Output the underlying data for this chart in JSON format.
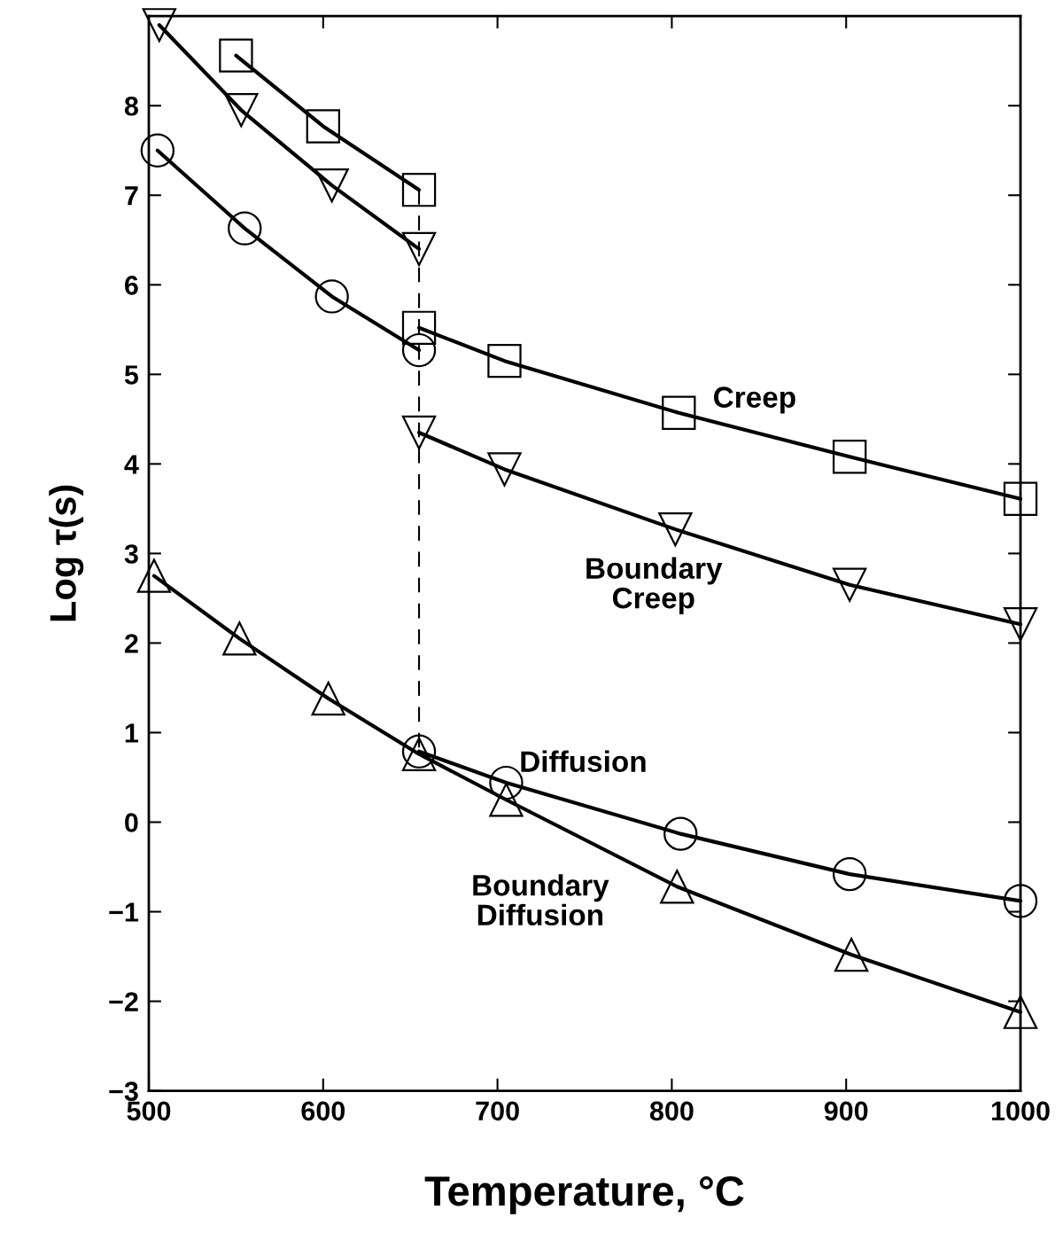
{
  "chart_data": {
    "type": "line",
    "xlabel": "Temperature, °C",
    "ylabel": "Log τ(s)",
    "xlim": [
      500,
      1000
    ],
    "ylim": [
      -3,
      9
    ],
    "xticks": [
      500,
      600,
      700,
      800,
      900,
      1000
    ],
    "yticks": [
      -3,
      -2,
      -1,
      0,
      1,
      2,
      3,
      4,
      5,
      6,
      7,
      8
    ],
    "grid": false,
    "legend": false,
    "series": [
      {
        "color": "#000000",
        "marker": "square",
        "x": [
          550,
          600,
          655
        ],
        "values": [
          8.56,
          7.77,
          7.06
        ]
      },
      {
        "color": "#000000",
        "marker": "square",
        "x": [
          655,
          704,
          804,
          902,
          1000
        ],
        "values": [
          5.52,
          5.15,
          4.57,
          4.08,
          3.61
        ]
      },
      {
        "color": "#000000",
        "marker": "triangle_down",
        "x": [
          506,
          553,
          605,
          655
        ],
        "values": [
          8.9,
          7.95,
          7.11,
          6.4
        ]
      },
      {
        "color": "#000000",
        "marker": "triangle_down",
        "x": [
          655,
          704,
          802,
          902,
          1000
        ],
        "values": [
          4.35,
          3.94,
          3.27,
          2.65,
          2.21
        ]
      },
      {
        "color": "#000000",
        "marker": "circle",
        "x": [
          505,
          555,
          605,
          655
        ],
        "values": [
          7.5,
          6.63,
          5.87,
          5.27
        ]
      },
      {
        "color": "#000000",
        "marker": "circle",
        "x": [
          655,
          705,
          805,
          902,
          1000
        ],
        "values": [
          0.79,
          0.44,
          -0.13,
          -0.58,
          -0.88
        ]
      },
      {
        "color": "#000000",
        "marker": "triangle",
        "x": [
          503,
          552,
          603,
          655,
          705,
          803,
          903,
          1000
        ],
        "values": [
          2.75,
          2.05,
          1.38,
          0.76,
          0.25,
          -0.72,
          -1.48,
          -2.12
        ]
      },
      {
        "color": "#000000",
        "marker": "none",
        "line_style": "dashed",
        "x": [
          655,
          655
        ],
        "values": [
          7.06,
          0.76
        ]
      }
    ],
    "annotations": [
      "Creep",
      "Boundary\nCreep",
      "Diffusion",
      "Boundary\nDiffusion"
    ]
  }
}
